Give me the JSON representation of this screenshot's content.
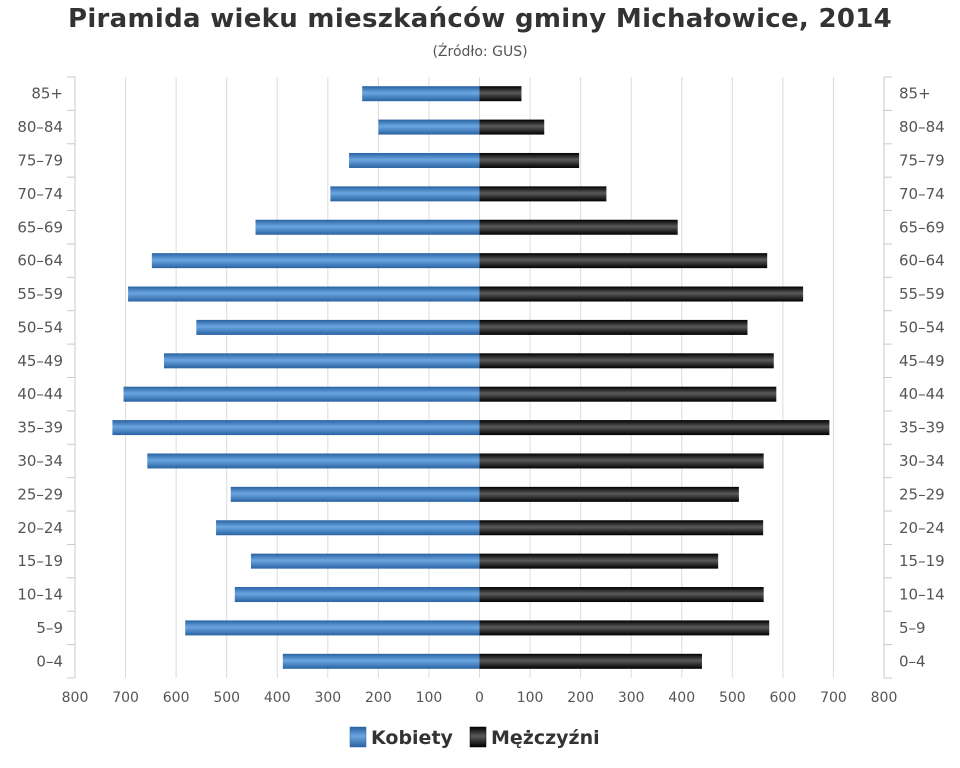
{
  "chart_data": {
    "type": "bar",
    "title": "Piramida wieku mieszkańców gminy Michałowice, 2014",
    "subtitle": "(Źródło: GUS)",
    "categories": [
      "85+",
      "80-84",
      "75-79",
      "70-74",
      "65-69",
      "60-64",
      "55-59",
      "50-54",
      "45-49",
      "40-44",
      "35-39",
      "30-34",
      "25-29",
      "20-24",
      "15-19",
      "10-14",
      "5-9",
      "0-4"
    ],
    "series": [
      {
        "name": "Kobiety",
        "values": [
          232,
          200,
          258,
          295,
          443,
          648,
          695,
          560,
          624,
          704,
          726,
          657,
          492,
          521,
          452,
          484,
          582,
          389
        ]
      },
      {
        "name": "Mężczyźni",
        "values": [
          83,
          128,
          197,
          251,
          392,
          569,
          640,
          530,
          582,
          587,
          692,
          562,
          513,
          561,
          472,
          562,
          573,
          440
        ]
      }
    ],
    "xticks": [
      800,
      700,
      600,
      500,
      400,
      300,
      200,
      100,
      0,
      100,
      200,
      300,
      400,
      500,
      600,
      700,
      800
    ],
    "xlim": [
      -800,
      800
    ],
    "grid": true,
    "legend_position": "bottom",
    "colors": {
      "Kobiety": "#3d7fc4",
      "Mężczyźni": "#1a1a1a"
    }
  }
}
